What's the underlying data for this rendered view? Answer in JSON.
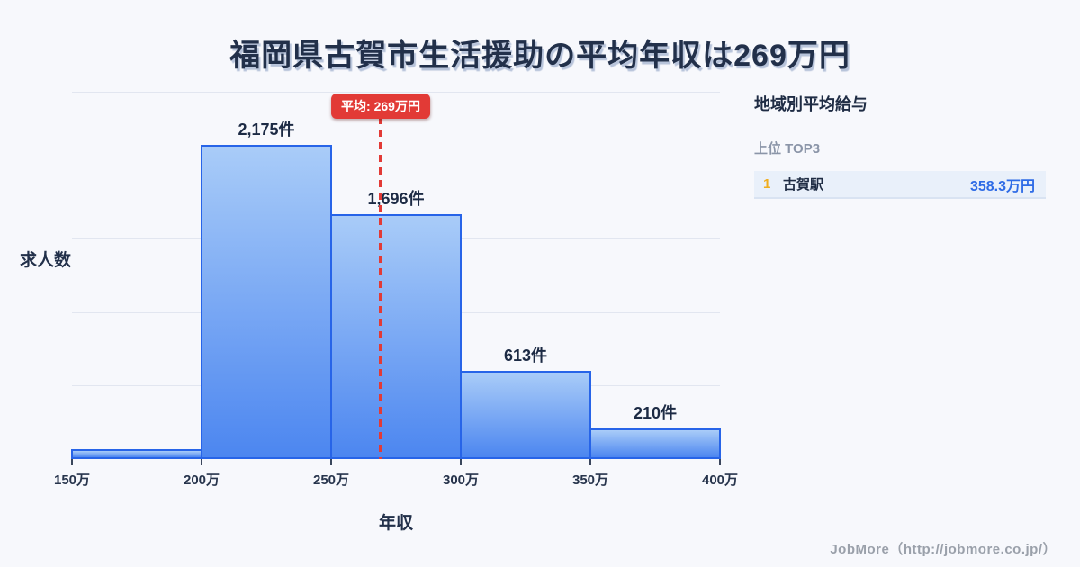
{
  "page": {
    "title": "福岡県古賀市生活援助の平均年収は269万円",
    "footer": "JobMore（http://jobmore.co.jp/）"
  },
  "chart_data": {
    "type": "bar",
    "title": "福岡県古賀市生活援助の平均年収は269万円",
    "xlabel": "年収",
    "ylabel": "求人数",
    "categories": [
      "150万-200万",
      "200万-250万",
      "250万-300万",
      "300万-350万",
      "350万-400万"
    ],
    "values": [
      70,
      2175,
      1696,
      613,
      210
    ],
    "bar_labels": [
      "",
      "2,175件",
      "1,696件",
      "613件",
      "210件"
    ],
    "x_tick_labels": [
      "150万",
      "200万",
      "250万",
      "300万",
      "350万",
      "400万"
    ],
    "x_range_man": [
      150,
      400
    ],
    "ylim": [
      0,
      2500
    ],
    "grid": true,
    "legend": "none",
    "average_man": 269,
    "average_label": "平均: 269万円",
    "note": "first bin (150万-200万) has no printed label; value estimated from bar height"
  },
  "side_panel": {
    "heading": "地域別平均給与",
    "subheading": "上位 TOP3",
    "rows": [
      {
        "rank": "1",
        "name": "古賀駅",
        "value": "358.3万円"
      }
    ]
  },
  "colors": {
    "background": "#f7f8fc",
    "title_text": "#22304a",
    "bar_fill_top": "#a9ccf8",
    "bar_fill_bottom": "#4c86f0",
    "bar_border": "#2764e8",
    "average_red": "#e23a36",
    "gridline": "#e2e6f0",
    "rank_gold": "#f0ad1e",
    "value_blue": "#2e6be6"
  }
}
